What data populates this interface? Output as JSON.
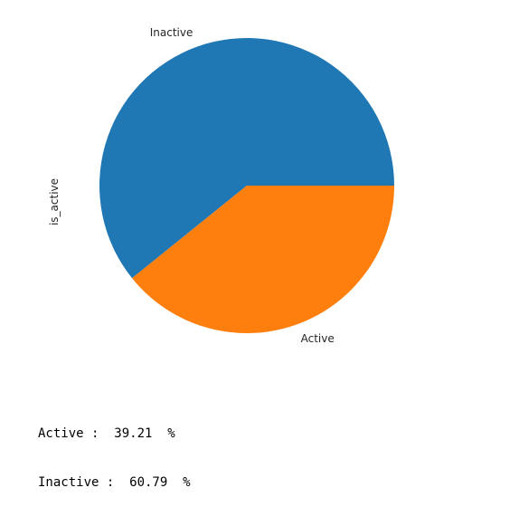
{
  "chart_data": {
    "type": "pie",
    "ylabel": "is_active",
    "slices": [
      {
        "label": "Inactive",
        "value": 60.79,
        "color": "#1f77b4"
      },
      {
        "label": "Active",
        "value": 39.21,
        "color": "#ff7f0e"
      }
    ],
    "start_angle_deg": 0,
    "direction": "counterclockwise"
  },
  "output": {
    "lines": [
      "Active :  39.21  %",
      "Inactive :  60.79  %"
    ]
  }
}
